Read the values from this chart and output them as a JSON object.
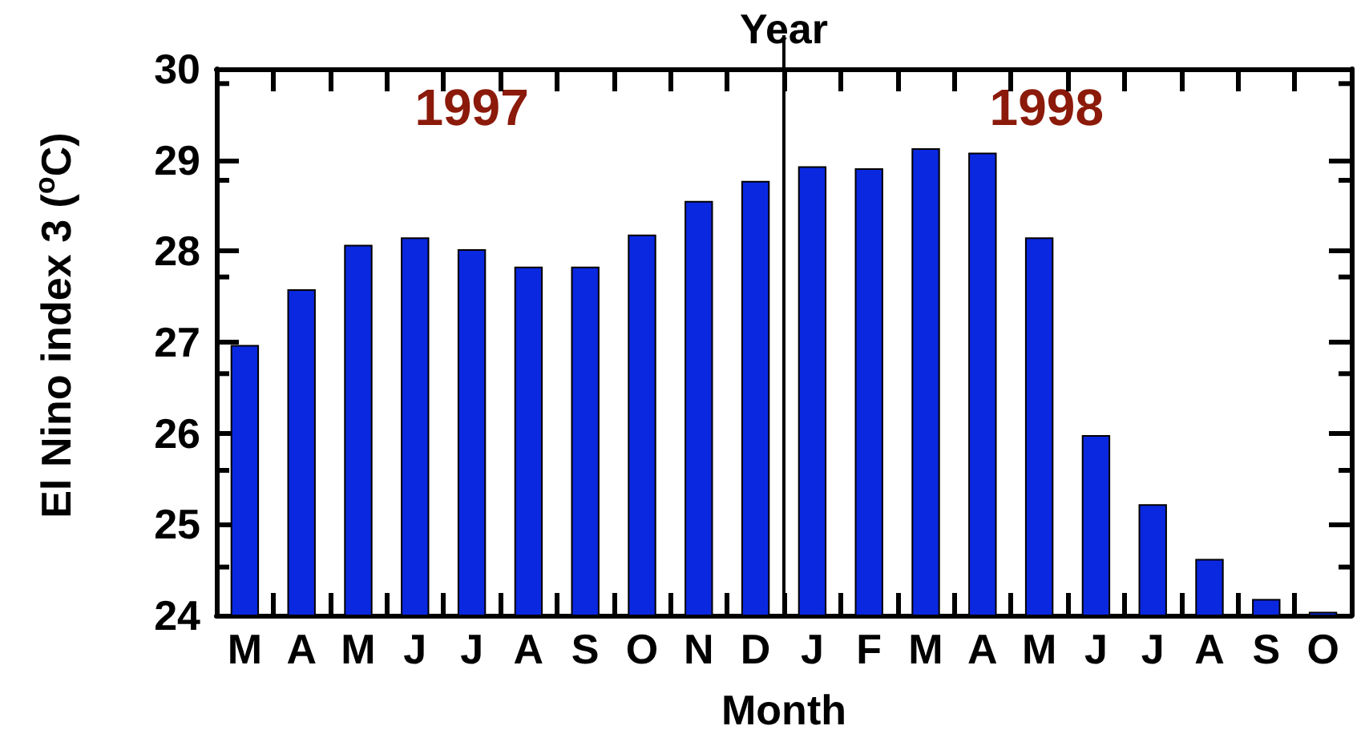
{
  "chart_data": {
    "type": "bar",
    "x2label": "Year",
    "xlabel": "Month",
    "ylabel": "El Nino index 3 ($^{o}$C)",
    "categories": [
      "M",
      "A",
      "M",
      "J",
      "J",
      "A",
      "S",
      "O",
      "N",
      "D",
      "J",
      "F",
      "M",
      "A",
      "M",
      "J",
      "J",
      "A",
      "S",
      "O"
    ],
    "values": [
      26.97,
      27.58,
      28.07,
      28.15,
      28.02,
      27.83,
      27.83,
      28.18,
      28.55,
      28.77,
      28.93,
      28.91,
      29.13,
      29.08,
      28.15,
      25.98,
      25.22,
      24.62,
      24.18,
      24.04
    ],
    "color": "#0a28e0",
    "ylim": [
      24,
      30
    ],
    "yticks": [
      24,
      25,
      26,
      27,
      28,
      29,
      30
    ],
    "annotations": [
      "1997",
      "1998"
    ]
  }
}
